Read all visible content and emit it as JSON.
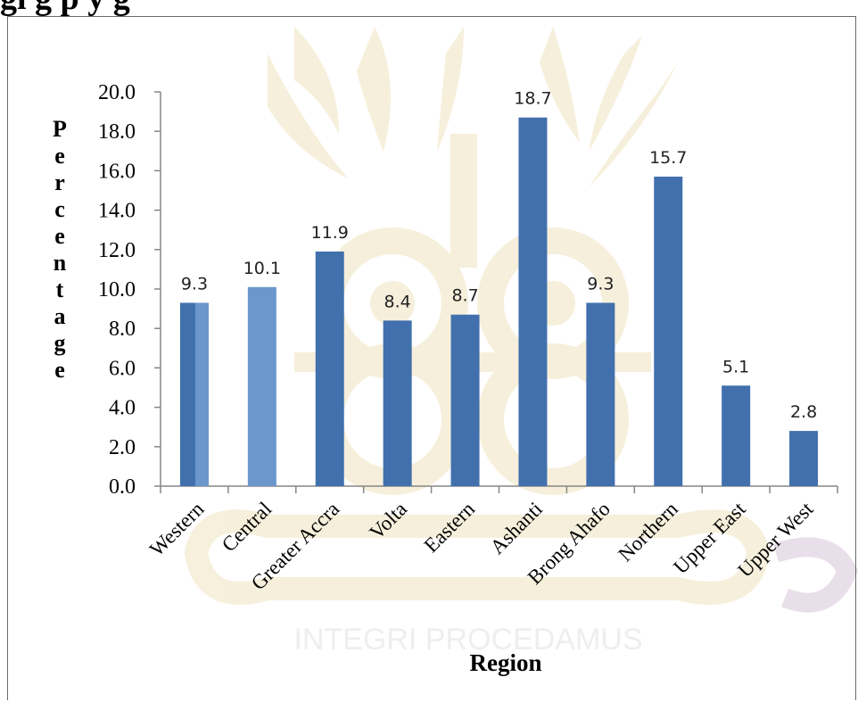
{
  "page": {
    "heading": "gi                 g                     p            y g"
  },
  "watermark": {
    "motto": "INTEGRI PROCEDAMUS",
    "colors": {
      "gold": "#c9a227",
      "purple": "#7b3f7f"
    }
  },
  "chart_data": {
    "type": "bar",
    "categories": [
      "Western",
      "Central",
      "Greater Accra",
      "Volta",
      "Eastern",
      "Ashanti",
      "Brong Ahafo",
      "Northern",
      "Upper East",
      "Upper West"
    ],
    "values": [
      9.3,
      10.1,
      11.9,
      8.4,
      8.7,
      18.7,
      9.3,
      15.7,
      5.1,
      2.8
    ],
    "data_labels": [
      "9.3",
      "10.1",
      "11.9",
      "8.4",
      "8.7",
      "18.7",
      "9.3",
      "15.7",
      "5.1",
      "2.8"
    ],
    "ylim": [
      0,
      20
    ],
    "yticks": [
      "0.0",
      "2.0",
      "4.0",
      "6.0",
      "8.0",
      "10.0",
      "12.0",
      "14.0",
      "16.0",
      "18.0",
      "20.0"
    ],
    "ylabel": "Percentage",
    "xlabel": "Region",
    "title": "",
    "grid": false,
    "colors": {
      "bar": "#4170ad",
      "bar_light": "#6b97cc",
      "axis": "#868686"
    }
  }
}
